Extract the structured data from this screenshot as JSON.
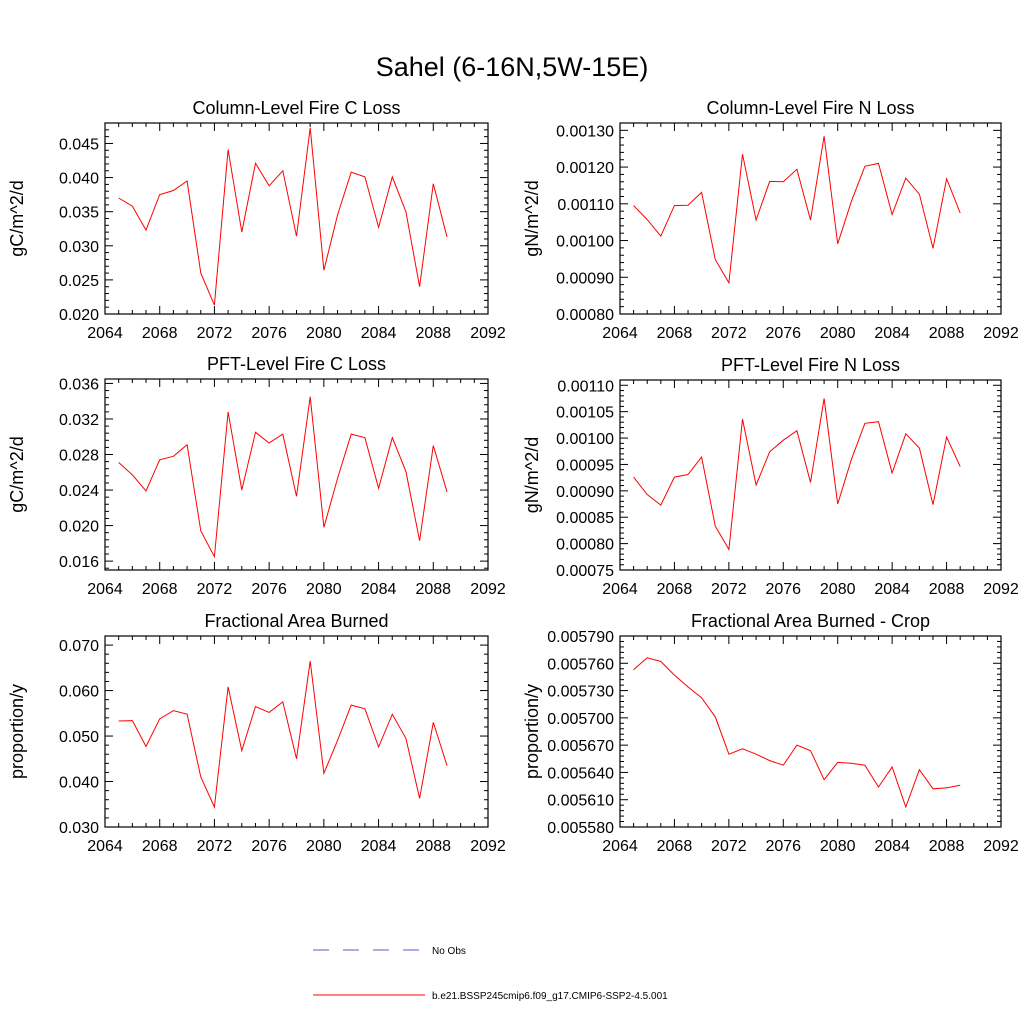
{
  "main_title": "Sahel (6-16N,5W-15E)",
  "legend": {
    "items": [
      {
        "label": "No Obs",
        "color": "#5a5ad6",
        "dash": true
      },
      {
        "label": "b.e21.BSSP245cmip6.f09_g17.CMIP6-SSP2-4.5.001",
        "color": "#ff0000",
        "dash": false
      }
    ]
  },
  "chart_data": [
    {
      "type": "line",
      "title": "Column-Level Fire C Loss",
      "ylabel": "gC/m^2/d",
      "xlim": [
        2064,
        2092
      ],
      "xticks": [
        2064,
        2068,
        2072,
        2076,
        2080,
        2084,
        2088,
        2092
      ],
      "ylim": [
        0.02,
        0.048
      ],
      "yticks": [
        0.02,
        0.025,
        0.03,
        0.035,
        0.04,
        0.045
      ],
      "ytick_labels": [
        "0.020",
        "0.025",
        "0.030",
        "0.035",
        "0.040",
        "0.045"
      ],
      "x": [
        2065,
        2066,
        2067,
        2068,
        2069,
        2070,
        2071,
        2072,
        2073,
        2074,
        2075,
        2076,
        2077,
        2078,
        2079,
        2080,
        2081,
        2082,
        2083,
        2084,
        2085,
        2086,
        2087,
        2088,
        2089
      ],
      "series": [
        {
          "name": "b.e21.BSSP245cmip6.f09_g17.CMIP6-SSP2-4.5.001",
          "color": "#ff0000",
          "values": [
            0.037,
            0.0358,
            0.0323,
            0.0375,
            0.0381,
            0.0395,
            0.026,
            0.0213,
            0.0441,
            0.032,
            0.0421,
            0.0388,
            0.041,
            0.0314,
            0.0473,
            0.0264,
            0.0345,
            0.0408,
            0.0401,
            0.0327,
            0.0401,
            0.035,
            0.024,
            0.0391,
            0.0313
          ]
        }
      ]
    },
    {
      "type": "line",
      "title": "Column-Level Fire N Loss",
      "ylabel": "gN/m^2/d",
      "xlim": [
        2064,
        2092
      ],
      "xticks": [
        2064,
        2068,
        2072,
        2076,
        2080,
        2084,
        2088,
        2092
      ],
      "ylim": [
        0.0008,
        0.00132
      ],
      "yticks": [
        0.0008,
        0.0009,
        0.001,
        0.0011,
        0.0012,
        0.0013
      ],
      "ytick_labels": [
        "0.00080",
        "0.00090",
        "0.00100",
        "0.00110",
        "0.00120",
        "0.00130"
      ],
      "x": [
        2065,
        2066,
        2067,
        2068,
        2069,
        2070,
        2071,
        2072,
        2073,
        2074,
        2075,
        2076,
        2077,
        2078,
        2079,
        2080,
        2081,
        2082,
        2083,
        2084,
        2085,
        2086,
        2087,
        2088,
        2089
      ],
      "series": [
        {
          "name": "b.e21.BSSP245cmip6.f09_g17.CMIP6-SSP2-4.5.001",
          "color": "#ff0000",
          "values": [
            0.001095,
            0.001057,
            0.001012,
            0.001095,
            0.001096,
            0.001131,
            0.000948,
            0.000885,
            0.001235,
            0.001056,
            0.001161,
            0.00116,
            0.001194,
            0.001056,
            0.001284,
            0.000991,
            0.001106,
            0.001202,
            0.00121,
            0.001071,
            0.00117,
            0.001126,
            0.000979,
            0.001168,
            0.001075
          ]
        }
      ]
    },
    {
      "type": "line",
      "title": "PFT-Level Fire C Loss",
      "ylabel": "gC/m^2/d",
      "xlim": [
        2064,
        2092
      ],
      "xticks": [
        2064,
        2068,
        2072,
        2076,
        2080,
        2084,
        2088,
        2092
      ],
      "ylim": [
        0.015,
        0.0365
      ],
      "yticks": [
        0.016,
        0.02,
        0.024,
        0.028,
        0.032,
        0.036
      ],
      "ytick_labels": [
        "0.016",
        "0.020",
        "0.024",
        "0.028",
        "0.032",
        "0.036"
      ],
      "x": [
        2065,
        2066,
        2067,
        2068,
        2069,
        2070,
        2071,
        2072,
        2073,
        2074,
        2075,
        2076,
        2077,
        2078,
        2079,
        2080,
        2081,
        2082,
        2083,
        2084,
        2085,
        2086,
        2087,
        2088,
        2089
      ],
      "series": [
        {
          "name": "b.e21.BSSP245cmip6.f09_g17.CMIP6-SSP2-4.5.001",
          "color": "#ff0000",
          "values": [
            0.0271,
            0.0257,
            0.0239,
            0.0274,
            0.0278,
            0.0291,
            0.0194,
            0.0165,
            0.0328,
            0.024,
            0.0305,
            0.0293,
            0.0303,
            0.0233,
            0.0345,
            0.0198,
            0.0253,
            0.0303,
            0.0299,
            0.0242,
            0.0299,
            0.0261,
            0.0183,
            0.029,
            0.0238
          ]
        }
      ]
    },
    {
      "type": "line",
      "title": "PFT-Level Fire N Loss",
      "ylabel": "gN/m^2/d",
      "xlim": [
        2064,
        2092
      ],
      "xticks": [
        2064,
        2068,
        2072,
        2076,
        2080,
        2084,
        2088,
        2092
      ],
      "ylim": [
        0.00075,
        0.00111
      ],
      "yticks": [
        0.00075,
        0.0008,
        0.00085,
        0.0009,
        0.00095,
        0.001,
        0.00105,
        0.0011
      ],
      "ytick_labels": [
        "0.00075",
        "0.00080",
        "0.00085",
        "0.00090",
        "0.00095",
        "0.00100",
        "0.00105",
        "0.00110"
      ],
      "x": [
        2065,
        2066,
        2067,
        2068,
        2069,
        2070,
        2071,
        2072,
        2073,
        2074,
        2075,
        2076,
        2077,
        2078,
        2079,
        2080,
        2081,
        2082,
        2083,
        2084,
        2085,
        2086,
        2087,
        2088,
        2089
      ],
      "series": [
        {
          "name": "b.e21.BSSP245cmip6.f09_g17.CMIP6-SSP2-4.5.001",
          "color": "#ff0000",
          "values": [
            0.000926,
            0.000893,
            0.000873,
            0.000926,
            0.000931,
            0.000964,
            0.000833,
            0.000789,
            0.001036,
            0.000911,
            0.000974,
            0.000996,
            0.001014,
            0.000916,
            0.001075,
            0.000875,
            0.000959,
            0.001028,
            0.001031,
            0.000934,
            0.001008,
            0.000981,
            0.000874,
            0.001002,
            0.000946
          ]
        }
      ]
    },
    {
      "type": "line",
      "title": "Fractional Area Burned",
      "ylabel": "proportion/y",
      "xlim": [
        2064,
        2092
      ],
      "xticks": [
        2064,
        2068,
        2072,
        2076,
        2080,
        2084,
        2088,
        2092
      ],
      "ylim": [
        0.03,
        0.072
      ],
      "yticks": [
        0.03,
        0.04,
        0.05,
        0.06,
        0.07
      ],
      "ytick_labels": [
        "0.030",
        "0.040",
        "0.050",
        "0.060",
        "0.070"
      ],
      "x": [
        2065,
        2066,
        2067,
        2068,
        2069,
        2070,
        2071,
        2072,
        2073,
        2074,
        2075,
        2076,
        2077,
        2078,
        2079,
        2080,
        2081,
        2082,
        2083,
        2084,
        2085,
        2086,
        2087,
        2088,
        2089
      ],
      "series": [
        {
          "name": "b.e21.BSSP245cmip6.f09_g17.CMIP6-SSP2-4.5.001",
          "color": "#ff0000",
          "values": [
            0.0533,
            0.0534,
            0.0477,
            0.0538,
            0.0556,
            0.0548,
            0.041,
            0.0344,
            0.0608,
            0.0468,
            0.0565,
            0.0552,
            0.0575,
            0.045,
            0.0665,
            0.0418,
            0.049,
            0.0568,
            0.056,
            0.0476,
            0.0548,
            0.0495,
            0.0363,
            0.053,
            0.0435
          ]
        }
      ]
    },
    {
      "type": "line",
      "title": "Fractional Area Burned - Crop",
      "ylabel": "proportion/y",
      "xlim": [
        2064,
        2092
      ],
      "xticks": [
        2064,
        2068,
        2072,
        2076,
        2080,
        2084,
        2088,
        2092
      ],
      "ylim": [
        0.00558,
        0.00579
      ],
      "yticks": [
        0.00558,
        0.00561,
        0.00564,
        0.00567,
        0.0057,
        0.00573,
        0.00576,
        0.00579
      ],
      "ytick_labels": [
        "0.005580",
        "0.005610",
        "0.005640",
        "0.005670",
        "0.005700",
        "0.005730",
        "0.005760",
        "0.005790"
      ],
      "x": [
        2065,
        2066,
        2067,
        2068,
        2069,
        2070,
        2071,
        2072,
        2073,
        2074,
        2075,
        2076,
        2077,
        2078,
        2079,
        2080,
        2081,
        2082,
        2083,
        2084,
        2085,
        2086,
        2087,
        2088,
        2089
      ],
      "series": [
        {
          "name": "b.e21.BSSP245cmip6.f09_g17.CMIP6-SSP2-4.5.001",
          "color": "#ff0000",
          "values": [
            0.005753,
            0.005766,
            0.005762,
            0.005747,
            0.005734,
            0.005722,
            0.005701,
            0.00566,
            0.005666,
            0.00566,
            0.005653,
            0.005648,
            0.00567,
            0.005664,
            0.005632,
            0.005651,
            0.00565,
            0.005648,
            0.005624,
            0.005646,
            0.005602,
            0.005643,
            0.005622,
            0.005623,
            0.005626
          ]
        }
      ]
    }
  ]
}
